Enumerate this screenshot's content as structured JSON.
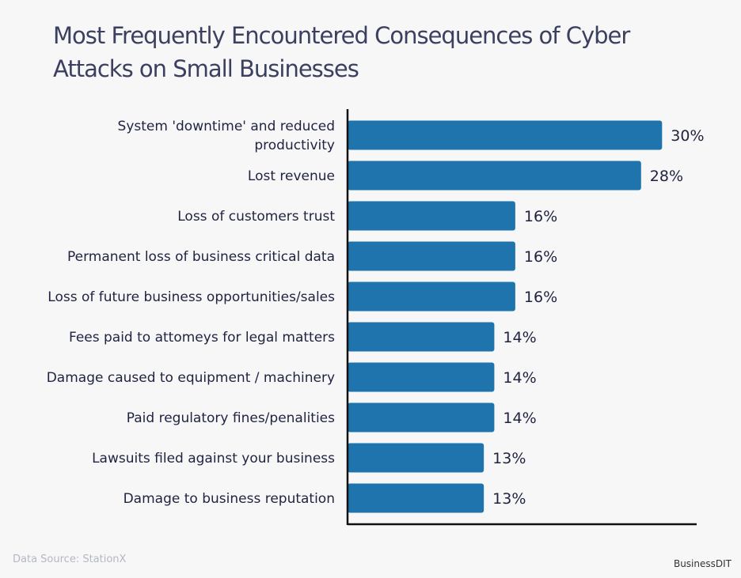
{
  "chart_data": {
    "type": "bar",
    "orientation": "horizontal",
    "title": "Most Frequently Encountered Consequences of Cyber Attacks on Small Businesses",
    "categories": [
      [
        "System 'downtime' and reduced",
        "productivity"
      ],
      [
        "Lost revenue"
      ],
      [
        "Loss of customers trust"
      ],
      [
        "Permanent loss of business critical data"
      ],
      [
        "Loss of future business opportunities/sales"
      ],
      [
        "Fees paid to attomeys for legal matters"
      ],
      [
        "Damage caused to equipment / machinery"
      ],
      [
        "Paid regulatory fines/penalities"
      ],
      [
        "Lawsuits filed against your business"
      ],
      [
        "Damage to business reputation"
      ]
    ],
    "values": [
      30,
      28,
      16,
      16,
      16,
      14,
      14,
      14,
      13,
      13
    ],
    "value_labels": [
      "30%",
      "28%",
      "16%",
      "16%",
      "16%",
      "14%",
      "14%",
      "14%",
      "13%",
      "13%"
    ],
    "xlim": [
      0,
      33.3
    ],
    "grid": false,
    "bar_color": "#1f74ad"
  },
  "footer": {
    "source": "Data Source: StationX",
    "brand": "BusinessDIT"
  }
}
